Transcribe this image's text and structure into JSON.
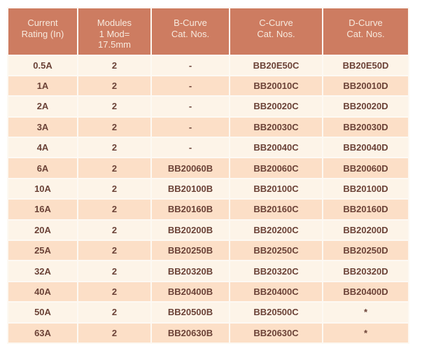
{
  "colors": {
    "page_bg": "#ffffff",
    "header_bg": "#cd7c61",
    "header_text": "#f7eade",
    "row_light": "#fdf4e8",
    "row_dark": "#fcdfc7",
    "cell_text": "#6b4237",
    "gap": "#fdf9f3"
  },
  "table": {
    "headers": [
      "Current\nRating (In)",
      "Modules\n1 Mod=\n17.5mm",
      "B-Curve\nCat. Nos.",
      "C-Curve\nCat. Nos.",
      "D-Curve\nCat. Nos."
    ],
    "rows": [
      [
        "0.5A",
        "2",
        "-",
        "BB20E50C",
        "BB20E50D"
      ],
      [
        "1A",
        "2",
        "-",
        "BB20010C",
        "BB20010D"
      ],
      [
        "2A",
        "2",
        "-",
        "BB20020C",
        "BB20020D"
      ],
      [
        "3A",
        "2",
        "-",
        "BB20030C",
        "BB20030D"
      ],
      [
        "4A",
        "2",
        "-",
        "BB20040C",
        "BB20040D"
      ],
      [
        "6A",
        "2",
        "BB20060B",
        "BB20060C",
        "BB20060D"
      ],
      [
        "10A",
        "2",
        "BB20100B",
        "BB20100C",
        "BB20100D"
      ],
      [
        "16A",
        "2",
        "BB20160B",
        "BB20160C",
        "BB20160D"
      ],
      [
        "20A",
        "2",
        "BB20200B",
        "BB20200C",
        "BB20200D"
      ],
      [
        "25A",
        "2",
        "BB20250B",
        "BB20250C",
        "BB20250D"
      ],
      [
        "32A",
        "2",
        "BB20320B",
        "BB20320C",
        "BB20320D"
      ],
      [
        "40A",
        "2",
        "BB20400B",
        "BB20400C",
        "BB20400D"
      ],
      [
        "50A",
        "2",
        "BB20500B",
        "BB20500C",
        "*"
      ],
      [
        "63A",
        "2",
        "BB20630B",
        "BB20630C",
        "*"
      ]
    ]
  }
}
